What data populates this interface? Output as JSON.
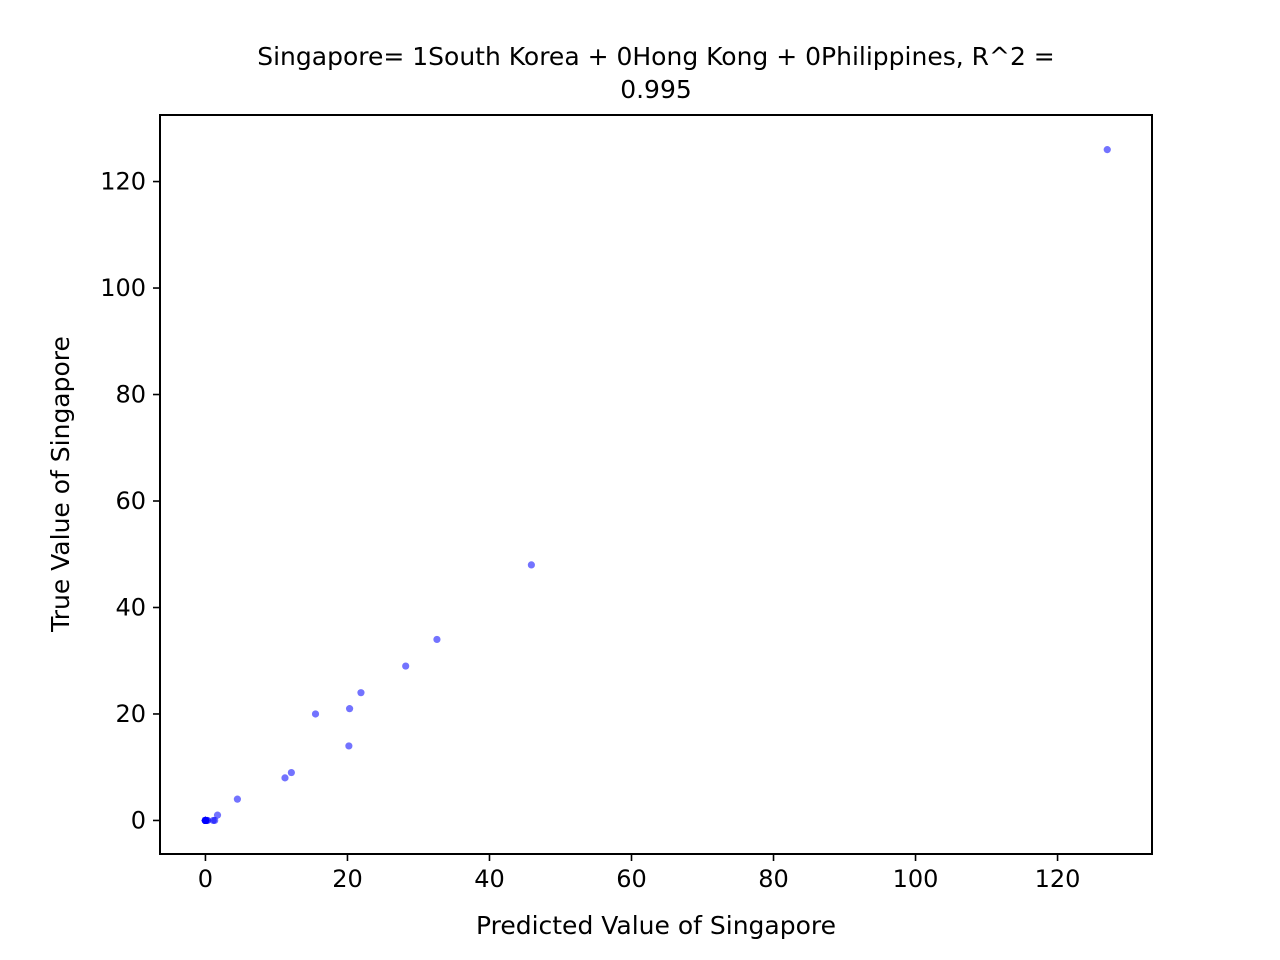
{
  "chart_data": {
    "type": "scatter",
    "title_lines": [
      "Singapore= 1South Korea + 0Hong Kong + 0Philippines, R^2 =",
      "0.995"
    ],
    "xlabel": "Predicted Value of Singapore",
    "ylabel": "True Value of Singapore",
    "xlim": [
      -6.4,
      133.3
    ],
    "ylim": [
      -6.3,
      132.5
    ],
    "x_ticks": [
      0,
      20,
      40,
      60,
      80,
      100,
      120
    ],
    "y_ticks": [
      0,
      20,
      40,
      60,
      80,
      100,
      120
    ],
    "x_tick_labels": [
      "0",
      "20",
      "40",
      "60",
      "80",
      "100",
      "120"
    ],
    "y_tick_labels": [
      "0",
      "20",
      "40",
      "60",
      "80",
      "100",
      "120"
    ],
    "grid": false,
    "legend": "none",
    "marker_color": "#0000ff",
    "series": [
      {
        "x": [
          0,
          0,
          0,
          0,
          0,
          0,
          0,
          0,
          0,
          0,
          0,
          0,
          0,
          0,
          0,
          0,
          0,
          0,
          0,
          0,
          0,
          0,
          0,
          0,
          0,
          0,
          0,
          0,
          0,
          0,
          0,
          0,
          0,
          0,
          0,
          0,
          0,
          0,
          0,
          0,
          0.2,
          0.3,
          1.1,
          1.3,
          1.7,
          4.5,
          11.2,
          12.1,
          15.5,
          20.2,
          20.3,
          21.9,
          28.2,
          32.6,
          45.9,
          127.0
        ],
        "y": [
          0,
          0,
          0,
          0,
          0,
          0,
          0,
          0,
          0,
          0,
          0,
          0,
          0,
          0,
          0,
          0,
          0,
          0,
          0,
          0,
          0,
          0,
          0,
          0,
          0,
          0,
          0,
          0,
          0,
          0,
          0,
          0,
          0,
          0,
          0,
          0,
          0,
          0,
          0,
          0,
          0,
          0,
          0,
          0,
          1,
          4,
          8,
          9,
          20,
          14,
          21,
          24,
          29,
          34,
          48,
          126
        ]
      }
    ]
  }
}
